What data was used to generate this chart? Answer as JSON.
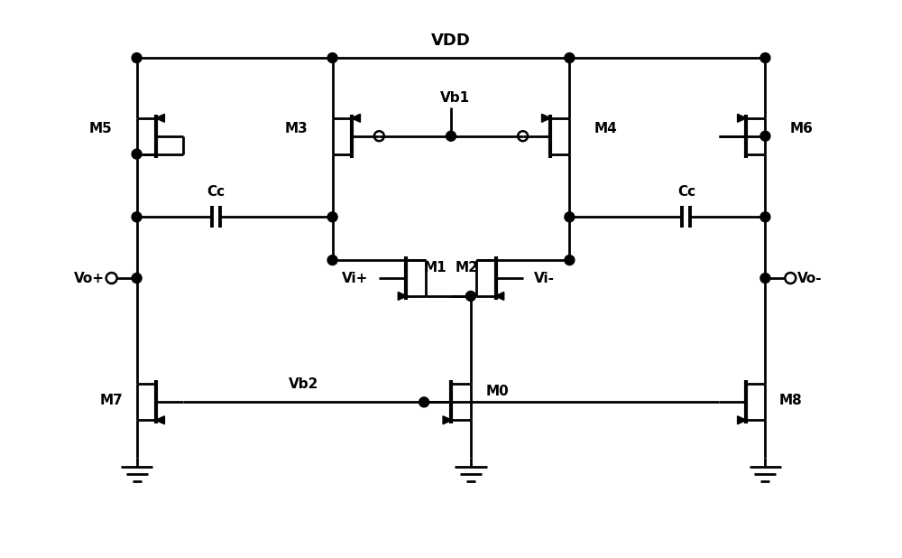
{
  "bg_color": "#ffffff",
  "line_color": "#000000",
  "fig_width": 10.0,
  "fig_height": 6.18,
  "dpi": 100,
  "vdd_label": "VDD",
  "vb1_label": "Vb1",
  "vb2_label": "Vb2",
  "vo_plus_label": "Vo+",
  "vo_minus_label": "Vo-",
  "vi_plus_label": "Vi+",
  "vi_minus_label": "Vi-",
  "m0_label": "M0",
  "m1_label": "M1",
  "m2_label": "M2",
  "m3_label": "M3",
  "m4_label": "M4",
  "m5_label": "M5",
  "m6_label": "M6",
  "m7_label": "M7",
  "m8_label": "M8",
  "cc_label": "Cc",
  "xmin": 0,
  "xmax": 10,
  "ymin": 0,
  "ymax": 6.18
}
